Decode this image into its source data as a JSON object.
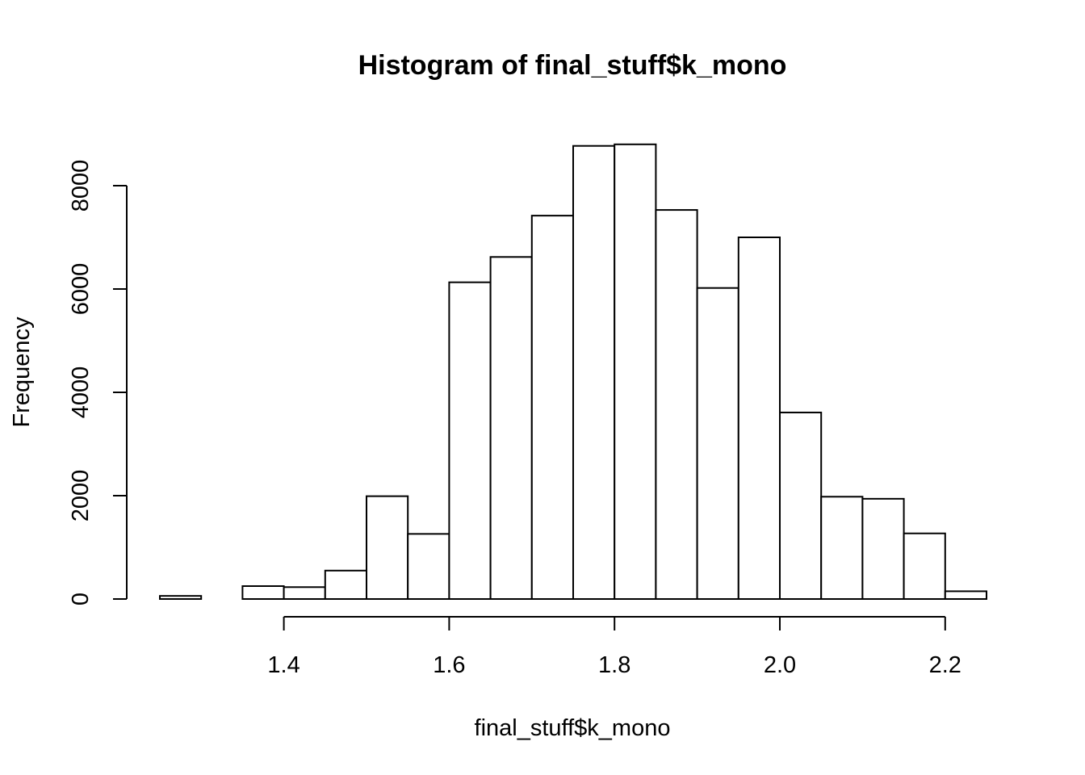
{
  "chart_data": {
    "type": "bar",
    "title": "Histogram of final_stuff$k_mono",
    "xlabel": "final_stuff$k_mono",
    "ylabel": "Frequency",
    "bins": [
      {
        "start": 1.25,
        "end": 1.3,
        "count": 60
      },
      {
        "start": 1.3,
        "end": 1.35,
        "count": 0
      },
      {
        "start": 1.35,
        "end": 1.4,
        "count": 250
      },
      {
        "start": 1.4,
        "end": 1.45,
        "count": 230
      },
      {
        "start": 1.45,
        "end": 1.5,
        "count": 550
      },
      {
        "start": 1.5,
        "end": 1.55,
        "count": 1990
      },
      {
        "start": 1.55,
        "end": 1.6,
        "count": 1260
      },
      {
        "start": 1.6,
        "end": 1.65,
        "count": 6130
      },
      {
        "start": 1.65,
        "end": 1.7,
        "count": 6620
      },
      {
        "start": 1.7,
        "end": 1.75,
        "count": 7420
      },
      {
        "start": 1.75,
        "end": 1.8,
        "count": 8770
      },
      {
        "start": 1.8,
        "end": 1.85,
        "count": 8800
      },
      {
        "start": 1.85,
        "end": 1.9,
        "count": 7530
      },
      {
        "start": 1.9,
        "end": 1.95,
        "count": 6020
      },
      {
        "start": 1.95,
        "end": 2.0,
        "count": 7000
      },
      {
        "start": 2.0,
        "end": 2.05,
        "count": 3610
      },
      {
        "start": 2.05,
        "end": 2.1,
        "count": 1980
      },
      {
        "start": 2.1,
        "end": 2.15,
        "count": 1940
      },
      {
        "start": 2.15,
        "end": 2.2,
        "count": 1270
      },
      {
        "start": 2.2,
        "end": 2.25,
        "count": 150
      }
    ],
    "xticks": [
      1.4,
      1.6,
      1.8,
      2.0,
      2.2
    ],
    "xtick_labels": [
      "1.4",
      "1.6",
      "1.8",
      "2.0",
      "2.2"
    ],
    "yticks": [
      0,
      2000,
      4000,
      6000,
      8000
    ],
    "ytick_labels": [
      "0",
      "2000",
      "4000",
      "6000",
      "8000"
    ],
    "xlim": [
      1.25,
      2.25
    ],
    "ylim": [
      0,
      8800
    ],
    "grid": false,
    "bar_fill": "#ffffff",
    "bar_stroke": "#000000"
  }
}
